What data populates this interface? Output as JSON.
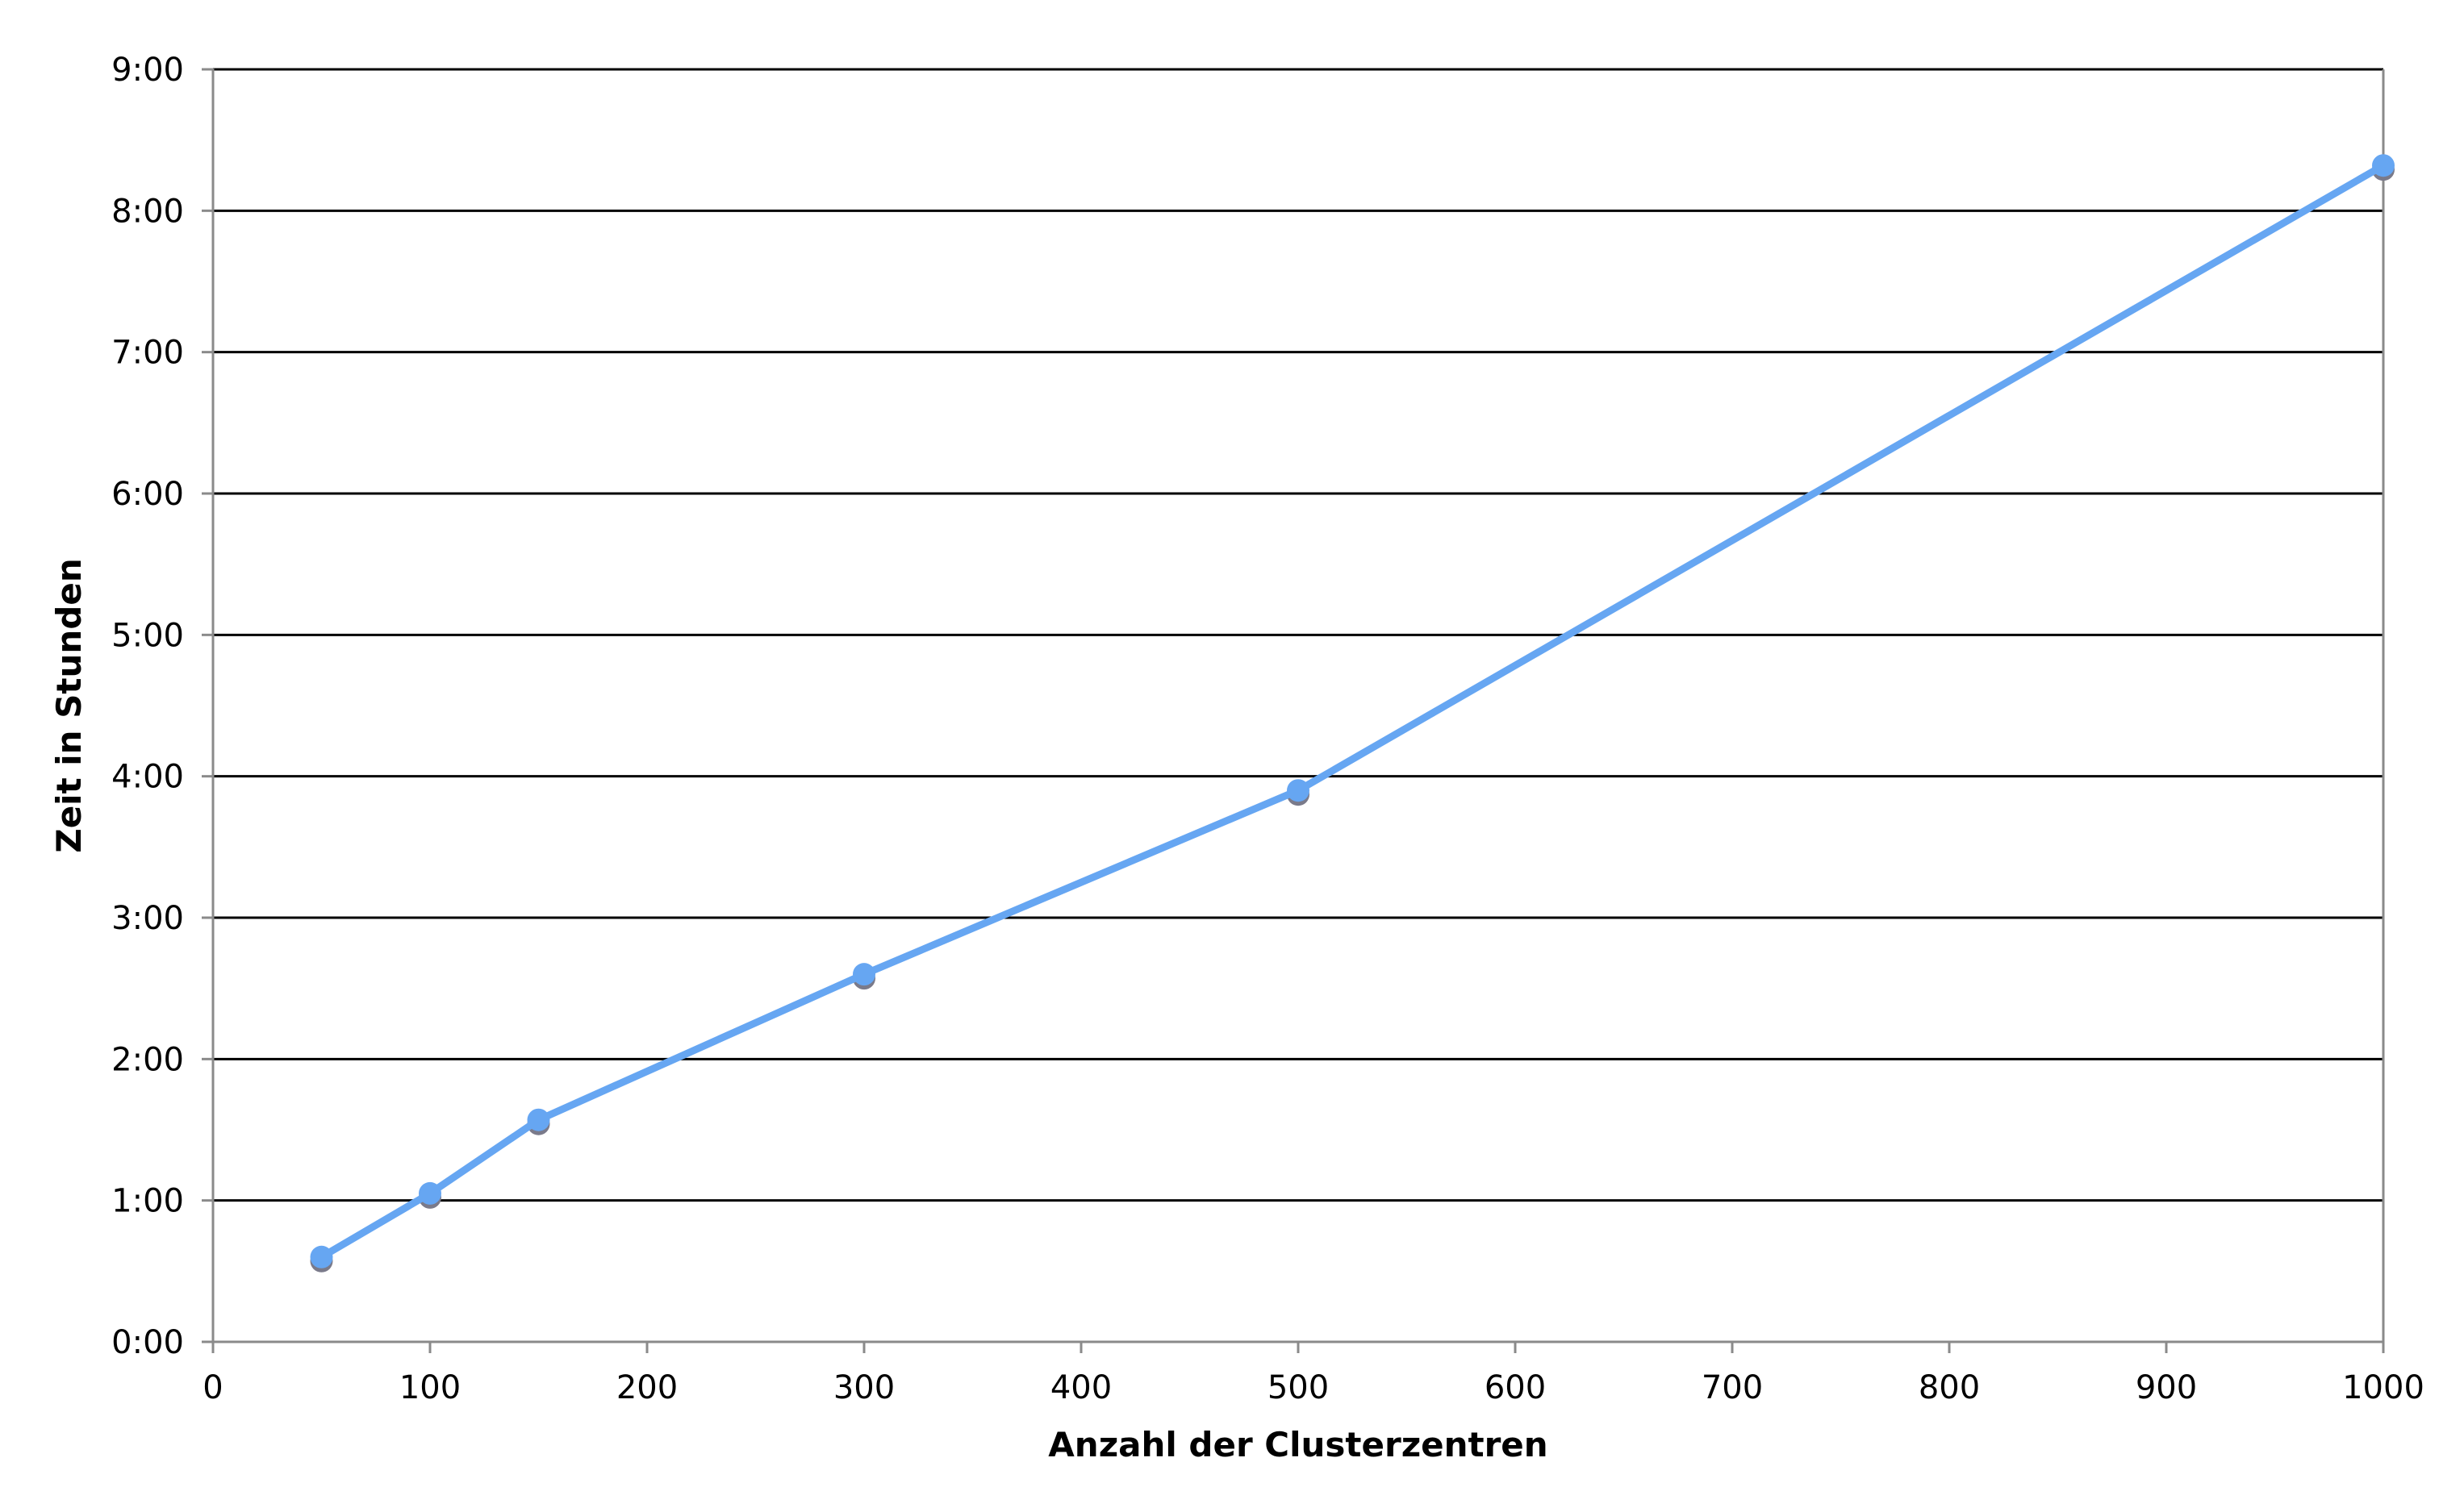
{
  "chart_data": {
    "type": "line",
    "title": "",
    "xlabel": "Anzahl der Clusterzentren",
    "ylabel": "Zeit in Stunden",
    "xlim": [
      0,
      1000
    ],
    "ylim": [
      0,
      9
    ],
    "x_ticks": [
      0,
      100,
      200,
      300,
      400,
      500,
      600,
      700,
      800,
      900,
      1000
    ],
    "x_tick_labels": [
      "0",
      "100",
      "200",
      "300",
      "400",
      "500",
      "600",
      "700",
      "800",
      "900",
      "1000"
    ],
    "y_ticks": [
      0,
      1,
      2,
      3,
      4,
      5,
      6,
      7,
      8,
      9
    ],
    "y_tick_labels": [
      "0:00",
      "1:00",
      "2:00",
      "3:00",
      "4:00",
      "5:00",
      "6:00",
      "7:00",
      "8:00",
      "9:00"
    ],
    "grid": "horizontal",
    "legend": "none",
    "series": [
      {
        "color": "#66a6f2",
        "marker_shadow_color": "#7a7a8a",
        "x": [
          50,
          100,
          150,
          300,
          500,
          1000
        ],
        "y": [
          0.6,
          1.05,
          1.57,
          2.6,
          3.9,
          8.32
        ]
      }
    ]
  }
}
